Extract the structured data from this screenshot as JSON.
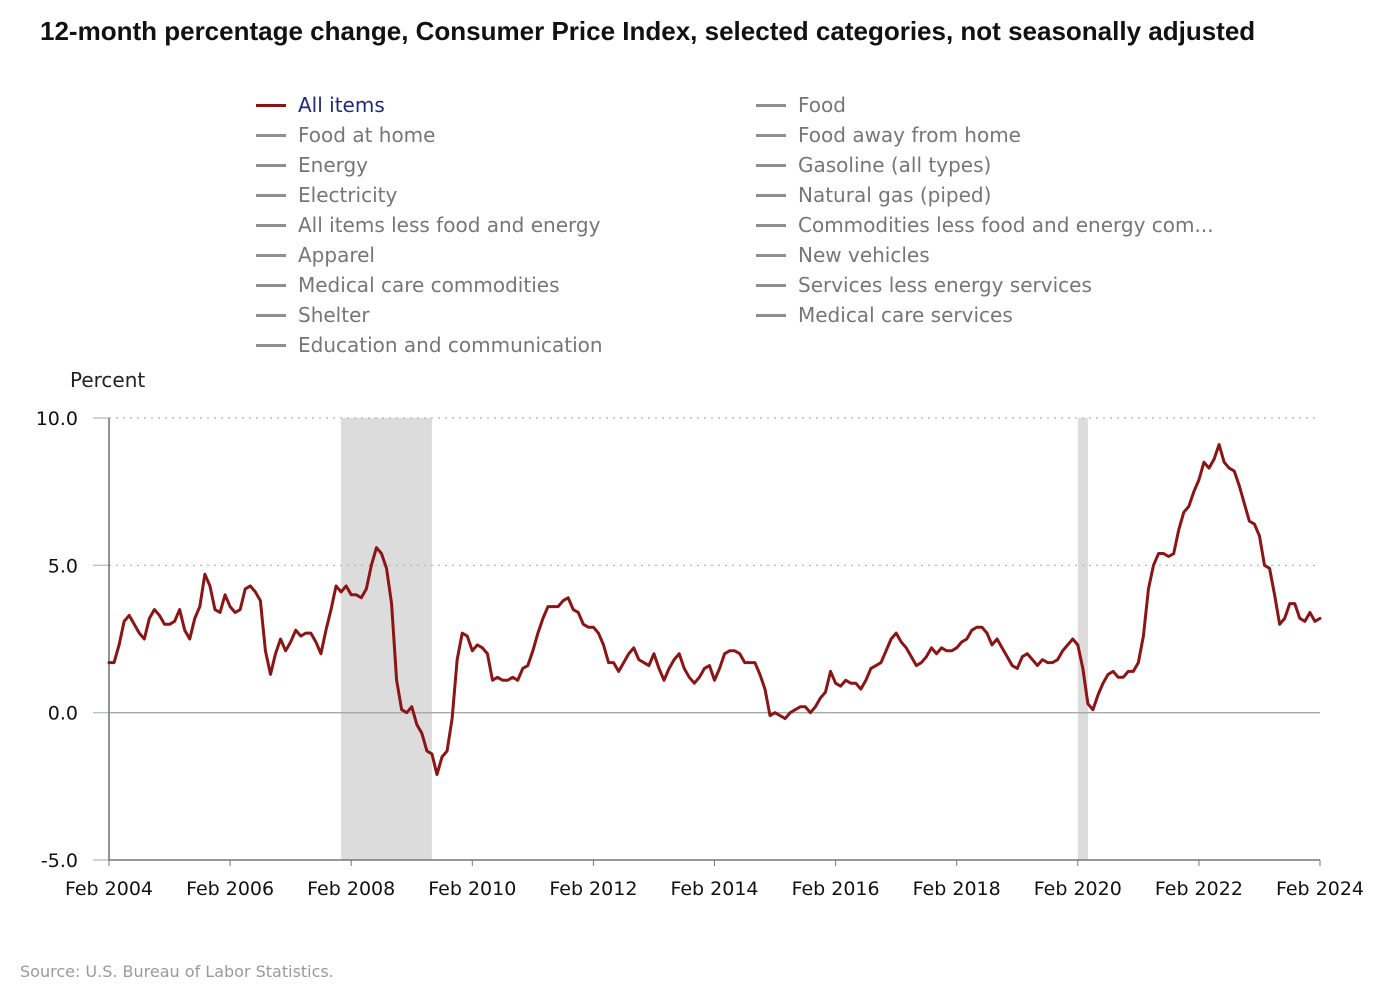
{
  "title": "12-month percentage change, Consumer Price Index, selected categories, not seasonally adjusted",
  "legend": [
    {
      "label": "All items",
      "active": true
    },
    {
      "label": "Food",
      "active": false
    },
    {
      "label": "Food at home",
      "active": false
    },
    {
      "label": "Food away from home",
      "active": false
    },
    {
      "label": "Energy",
      "active": false
    },
    {
      "label": "Gasoline (all types)",
      "active": false
    },
    {
      "label": "Electricity",
      "active": false
    },
    {
      "label": "Natural gas (piped)",
      "active": false
    },
    {
      "label": "All items less food and energy",
      "active": false
    },
    {
      "label": "Commodities less food and energy com...",
      "active": false
    },
    {
      "label": "Apparel",
      "active": false
    },
    {
      "label": "New vehicles",
      "active": false
    },
    {
      "label": "Medical care commodities",
      "active": false
    },
    {
      "label": "Services less energy services",
      "active": false
    },
    {
      "label": "Shelter",
      "active": false
    },
    {
      "label": "Medical care services",
      "active": false
    },
    {
      "label": "Education and communication",
      "active": false
    }
  ],
  "colors": {
    "active_series": "#8b1515",
    "inactive_series": "#8f8f8f",
    "recession_shade": "#dcdcdc",
    "gridline": "#b0b0b0"
  },
  "source": "Source: U.S. Bureau of Labor Statistics.",
  "chart_data": {
    "type": "line",
    "ylabel": "Percent",
    "xlabel": "",
    "ylim": [
      -5.0,
      10.0
    ],
    "yticks": [
      "10.0",
      "5.0",
      "0.0",
      "-5.0"
    ],
    "ytick_values": [
      10,
      5,
      0,
      -5
    ],
    "xticks": [
      "Feb 2004",
      "Feb 2006",
      "Feb 2008",
      "Feb 2010",
      "Feb 2012",
      "Feb 2014",
      "Feb 2016",
      "Feb 2018",
      "Feb 2020",
      "Feb 2022",
      "Feb 2024"
    ],
    "xtick_dates": [
      "2004-02",
      "2006-02",
      "2008-02",
      "2010-02",
      "2012-02",
      "2014-02",
      "2016-02",
      "2018-02",
      "2020-02",
      "2022-02",
      "2024-02"
    ],
    "x_range": [
      "2004-02",
      "2024-02"
    ],
    "gridlines": "dotted at 5.0 and 10.0",
    "recessions": [
      {
        "start": "2007-12",
        "end": "2009-06"
      },
      {
        "start": "2020-02",
        "end": "2020-04"
      }
    ],
    "series": [
      {
        "name": "All items",
        "start": "2004-02",
        "frequency": "monthly",
        "values": [
          1.7,
          1.7,
          2.3,
          3.1,
          3.3,
          3.0,
          2.7,
          2.5,
          3.2,
          3.5,
          3.3,
          3.0,
          3.0,
          3.1,
          3.5,
          2.8,
          2.5,
          3.2,
          3.6,
          4.7,
          4.3,
          3.5,
          3.4,
          4.0,
          3.6,
          3.4,
          3.5,
          4.2,
          4.3,
          4.1,
          3.8,
          2.1,
          1.3,
          2.0,
          2.5,
          2.1,
          2.4,
          2.8,
          2.6,
          2.7,
          2.7,
          2.4,
          2.0,
          2.8,
          3.5,
          4.3,
          4.1,
          4.3,
          4.0,
          4.0,
          3.9,
          4.2,
          5.0,
          5.6,
          5.4,
          4.9,
          3.7,
          1.1,
          0.1,
          0.0,
          0.2,
          -0.4,
          -0.7,
          -1.3,
          -1.4,
          -2.1,
          -1.5,
          -1.3,
          -0.2,
          1.8,
          2.7,
          2.6,
          2.1,
          2.3,
          2.2,
          2.0,
          1.1,
          1.2,
          1.1,
          1.1,
          1.2,
          1.1,
          1.5,
          1.6,
          2.1,
          2.7,
          3.2,
          3.6,
          3.6,
          3.6,
          3.8,
          3.9,
          3.5,
          3.4,
          3.0,
          2.9,
          2.9,
          2.7,
          2.3,
          1.7,
          1.7,
          1.4,
          1.7,
          2.0,
          2.2,
          1.8,
          1.7,
          1.6,
          2.0,
          1.5,
          1.1,
          1.5,
          1.8,
          2.0,
          1.5,
          1.2,
          1.0,
          1.2,
          1.5,
          1.6,
          1.1,
          1.5,
          2.0,
          2.1,
          2.1,
          2.0,
          1.7,
          1.7,
          1.7,
          1.3,
          0.8,
          -0.1,
          0.0,
          -0.1,
          -0.2,
          0.0,
          0.1,
          0.2,
          0.2,
          0.0,
          0.2,
          0.5,
          0.7,
          1.4,
          1.0,
          0.9,
          1.1,
          1.0,
          1.0,
          0.8,
          1.1,
          1.5,
          1.6,
          1.7,
          2.1,
          2.5,
          2.7,
          2.4,
          2.2,
          1.9,
          1.6,
          1.7,
          1.9,
          2.2,
          2.0,
          2.2,
          2.1,
          2.1,
          2.2,
          2.4,
          2.5,
          2.8,
          2.9,
          2.9,
          2.7,
          2.3,
          2.5,
          2.2,
          1.9,
          1.6,
          1.5,
          1.9,
          2.0,
          1.8,
          1.6,
          1.8,
          1.7,
          1.7,
          1.8,
          2.1,
          2.3,
          2.5,
          2.3,
          1.5,
          0.3,
          0.1,
          0.6,
          1.0,
          1.3,
          1.4,
          1.2,
          1.2,
          1.4,
          1.4,
          1.7,
          2.6,
          4.2,
          5.0,
          5.4,
          5.4,
          5.3,
          5.4,
          6.2,
          6.8,
          7.0,
          7.5,
          7.9,
          8.5,
          8.3,
          8.6,
          9.1,
          8.5,
          8.3,
          8.2,
          7.7,
          7.1,
          6.5,
          6.4,
          6.0,
          5.0,
          4.9,
          4.0,
          3.0,
          3.2,
          3.7,
          3.7,
          3.2,
          3.1,
          3.4,
          3.1,
          3.2
        ]
      }
    ]
  }
}
